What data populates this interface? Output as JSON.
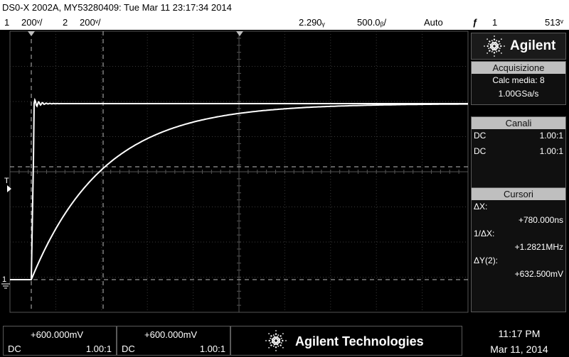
{
  "window_title": "DS0-X 2002A, MY53280409: Tue Mar 11 23:17:34 2014",
  "status": {
    "ch1_num": "1",
    "ch1_scale": "200ᵛ/",
    "ch2_num": "2",
    "ch2_scale": "200ᵛ/",
    "time_offset": "2.290ᵧ",
    "timebase": "500.0ᵦ/",
    "trigger_mode": "Auto",
    "trigger_symbol": "ƒ",
    "trigger_channel": "1",
    "trigger_level": "513ᵛ"
  },
  "right_panel": {
    "logo_text": "Agilent",
    "acq": {
      "title": "Acquisizione",
      "avg": "Calc media: 8",
      "rate": "1.00GSa/s"
    },
    "channels": {
      "title": "Canali",
      "rows": [
        {
          "coupling": "DC",
          "ratio": "1.00:1"
        },
        {
          "coupling": "DC",
          "ratio": "1.00:1"
        }
      ]
    },
    "cursors": {
      "title": "Cursori",
      "dx_label": "ΔX:",
      "dx_value": "+780.000ns",
      "inv_label": "1/ΔX:",
      "inv_value": "+1.2821MHz",
      "dy_label": "ΔY(2):",
      "dy_value": "+632.500mV"
    }
  },
  "bottom": {
    "ch1": {
      "offset": "+600.000mV",
      "coupling": "DC",
      "ratio": "1.00:1"
    },
    "ch2": {
      "offset": "+600.000mV",
      "coupling": "DC",
      "ratio": "1.00:1"
    },
    "brand": "Agilent Technologies",
    "time": "11:17 PM",
    "date": "Mar 11, 2014"
  },
  "markers": {
    "trigger_label": "T",
    "ground_label": "1",
    "ground2_label": "2"
  },
  "colors": {
    "trace": "#ffffff",
    "grid": "#3a3a3a",
    "cursor": "#bdbdbd",
    "panel_header": "#bfbfbf"
  }
}
